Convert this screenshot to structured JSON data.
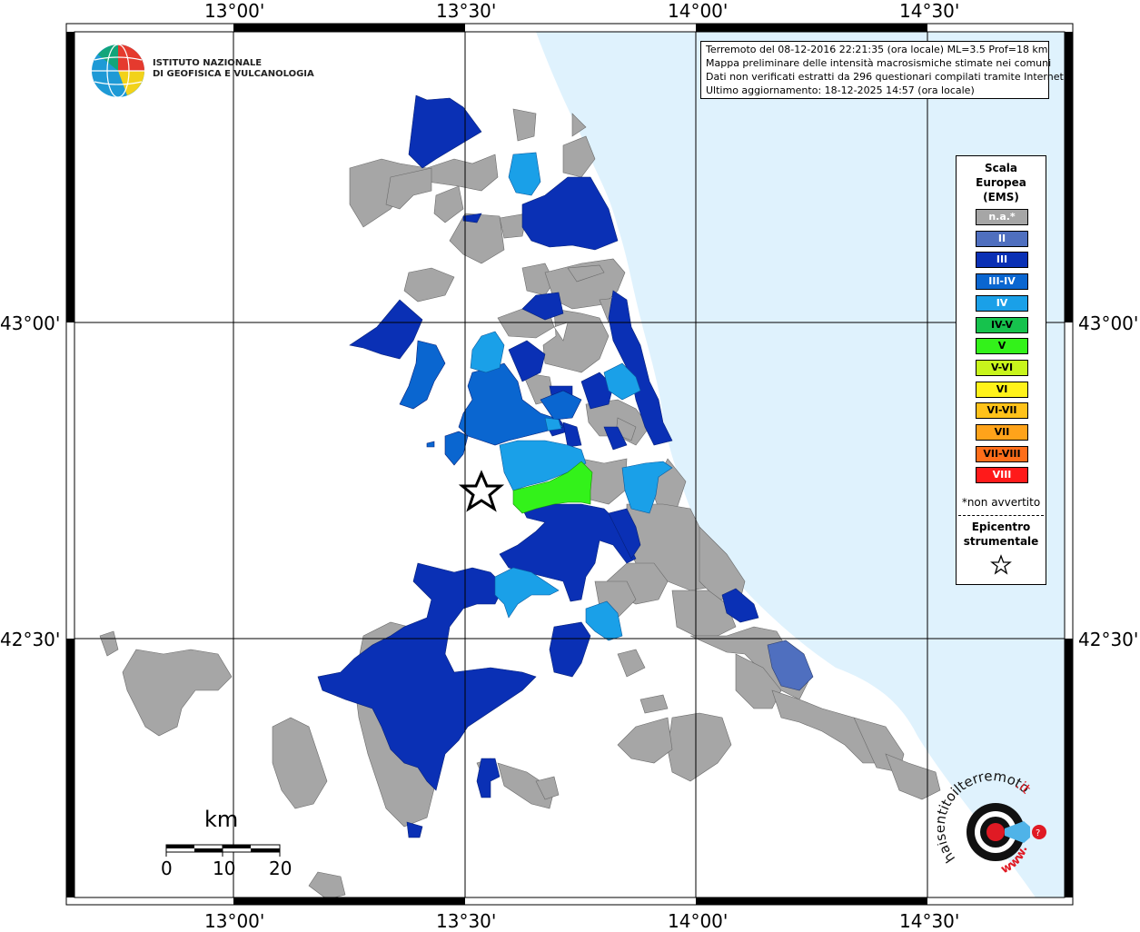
{
  "map": {
    "lon_ticks": [
      "13°00'",
      "13°30'",
      "14°00'",
      "14°30'"
    ],
    "lat_ticks": [
      "43°00'",
      "42°30'"
    ],
    "epicenter_icon": "star-outline-icon"
  },
  "info": {
    "line1": "Terremoto del 08-12-2016 22:21:35 (ora locale) ML=3.5 Prof=18 km",
    "line2": "Mappa preliminare delle intensità macrosismiche stimate nei comuni",
    "line3": "Dati non verificati estratti da 296 questionari compilati tramite Internet.",
    "line4": "Ultimo aggiornamento: 18-12-2025 14:57 (ora locale)"
  },
  "legend": {
    "title_line1": "Scala",
    "title_line2": "Europea",
    "title_line3": "(EMS)",
    "items": [
      {
        "label": "n.a.*",
        "color": "#a6a6a6",
        "text_color": "#ffffff"
      },
      {
        "label": "II",
        "color": "#4f6fbf",
        "text_color": "#ffffff"
      },
      {
        "label": "III",
        "color": "#0a30b5",
        "text_color": "#ffffff"
      },
      {
        "label": "III-IV",
        "color": "#0a66d0",
        "text_color": "#ffffff"
      },
      {
        "label": "IV",
        "color": "#1aa0e8",
        "text_color": "#ffffff"
      },
      {
        "label": "IV-V",
        "color": "#16c24d",
        "text_color": "#000000"
      },
      {
        "label": "V",
        "color": "#33f21a",
        "text_color": "#000000"
      },
      {
        "label": "V-VI",
        "color": "#c8f51c",
        "text_color": "#000000"
      },
      {
        "label": "VI",
        "color": "#fff21a",
        "text_color": "#000000"
      },
      {
        "label": "VI-VII",
        "color": "#ffc21a",
        "text_color": "#000000"
      },
      {
        "label": "VII",
        "color": "#ffa31a",
        "text_color": "#000000"
      },
      {
        "label": "VII-VIII",
        "color": "#ff6e1a",
        "text_color": "#000000"
      },
      {
        "label": "VIII",
        "color": "#ff1a1a",
        "text_color": "#ffffff"
      }
    ],
    "note": "*non avvertito",
    "epicenter_line1": "Epicentro",
    "epicenter_line2": "strumentale"
  },
  "logo": {
    "line1": "ISTITUTO NAZIONALE",
    "line2": "DI GEOFISICA E VULCANOLOGIA",
    "icon": "ingv-globe-icon"
  },
  "scale": {
    "unit": "km",
    "labels": [
      "0",
      "10",
      "20"
    ]
  },
  "haisentito": {
    "text_main": "haisentitoilterremoto",
    "text_suffix": ".it",
    "text_www": "www.",
    "icon": "haisentito-target-icon"
  },
  "colors": {
    "sea": "#dff2fd",
    "na": "#a6a6a6",
    "ii": "#4f6fbf",
    "iii": "#0a30b5",
    "iiiiv": "#0a66d0",
    "iv": "#1aa0e8",
    "ivv": "#16c24d",
    "v": "#33f21a"
  }
}
